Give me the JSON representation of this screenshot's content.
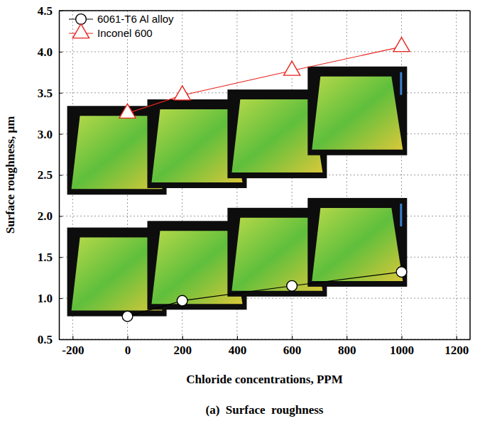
{
  "chart_data": {
    "type": "line",
    "title": "(a)  Surface  roughness",
    "x_label": "Chloride concentrations, PPM",
    "y_label": "Surface roughness, μm",
    "x": [
      0,
      200,
      600,
      1000
    ],
    "series": [
      {
        "name": "6061-T6 Al alloy",
        "color": "#000000",
        "marker": "circle",
        "line_style": "solid",
        "values": [
          0.78,
          0.97,
          1.15,
          1.32
        ]
      },
      {
        "name": "Inconel 600",
        "color": "#e8231e",
        "marker": "triangle",
        "line_style": "solid",
        "values": [
          3.25,
          3.47,
          3.77,
          4.06
        ]
      }
    ],
    "xlim": [
      -250,
      1250
    ],
    "xticks": [
      -200,
      0,
      200,
      400,
      600,
      800,
      1000,
      1200
    ],
    "ylim": [
      0.5,
      4.5
    ],
    "yticks": [
      0.5,
      {
        "value": 1,
        "label": "1.0"
      },
      1.5,
      {
        "value": 2,
        "label": "2.0"
      },
      2.5,
      {
        "value": 3,
        "label": "3.0"
      },
      3.5,
      {
        "value": 4,
        "label": "4.0"
      },
      4.5
    ],
    "grid": true,
    "legend": "upper left"
  }
}
